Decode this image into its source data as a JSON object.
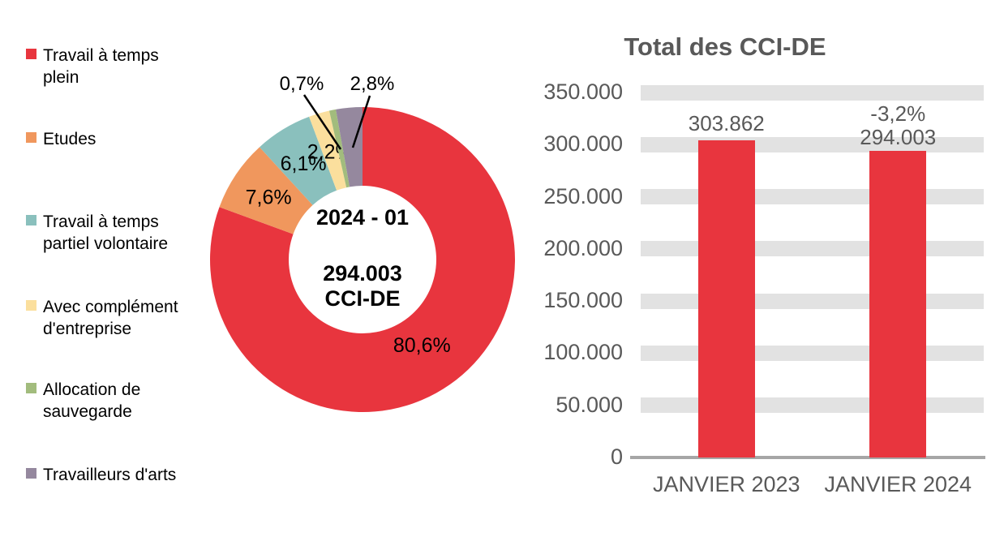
{
  "chart_data": [
    {
      "type": "pie",
      "subtype": "donut",
      "title": "",
      "labels": [
        "Travail à temps plein",
        "Etudes",
        "Travail à temps partiel volontaire",
        "Avec complément d'entreprise",
        "Allocation de sauvegarde",
        "Travailleurs d'arts"
      ],
      "values": [
        80.6,
        7.6,
        6.1,
        2.2,
        0.7,
        2.8
      ],
      "value_labels": [
        "80,6%",
        "7,6%",
        "6,1%",
        "2,2%",
        "0,7%",
        "2,8%"
      ],
      "colors": [
        "#E8353E",
        "#F0975D",
        "#8AC0BD",
        "#FBDF9D",
        "#A2BC7D",
        "#95889E"
      ],
      "callout": [
        false,
        false,
        false,
        false,
        true,
        true
      ],
      "center_labels": {
        "line1": "2024 - 01",
        "line2": "294.003",
        "line3": "CCI-DE"
      },
      "legend_position": "left",
      "start_angle_deg": 0,
      "direction": "clockwise"
    },
    {
      "type": "bar",
      "title": "Total des CCI-DE",
      "categories": [
        "JANVIER 2023",
        "JANVIER 2024"
      ],
      "values": [
        303862,
        294003
      ],
      "value_labels": [
        "303.862",
        "294.003"
      ],
      "annotations": [
        "",
        "-3,2%"
      ],
      "bar_color": "#E8353E",
      "ylim": [
        0,
        350000
      ],
      "y_ticks": [
        "350.000",
        "300.000",
        "250.000",
        "200.000",
        "150.000",
        "100.000",
        "50.000",
        "0"
      ],
      "grid": "horizontal-bands",
      "grid_color": "#E2E2E2",
      "axis_color": "#A6A6A6",
      "text_color": "#595959",
      "title_color": "#595959"
    }
  ]
}
